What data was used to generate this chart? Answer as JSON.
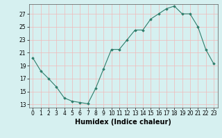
{
  "x": [
    0,
    1,
    2,
    3,
    4,
    5,
    6,
    7,
    8,
    9,
    10,
    11,
    12,
    13,
    14,
    15,
    16,
    17,
    18,
    19,
    20,
    21,
    22,
    23
  ],
  "y": [
    20.2,
    18.2,
    17.0,
    15.7,
    14.0,
    13.5,
    13.3,
    13.1,
    15.5,
    18.5,
    21.5,
    21.5,
    23.0,
    24.5,
    24.5,
    26.2,
    27.0,
    27.8,
    28.2,
    27.0,
    27.0,
    25.0,
    21.5,
    19.3
  ],
  "line_color": "#2e7d6b",
  "marker": "D",
  "marker_size": 1.8,
  "bg_color": "#d6f0f0",
  "grid_color": "#f0b8b8",
  "xlabel": "Humidex (Indice chaleur)",
  "yticks": [
    13,
    15,
    17,
    19,
    21,
    23,
    25,
    27
  ],
  "xticks": [
    0,
    1,
    2,
    3,
    4,
    5,
    6,
    7,
    8,
    9,
    10,
    11,
    12,
    13,
    14,
    15,
    16,
    17,
    18,
    19,
    20,
    21,
    22,
    23
  ],
  "xlim": [
    -0.5,
    23.5
  ],
  "ylim": [
    12.5,
    28.5
  ],
  "tick_fontsize": 5.5,
  "label_fontsize": 7
}
